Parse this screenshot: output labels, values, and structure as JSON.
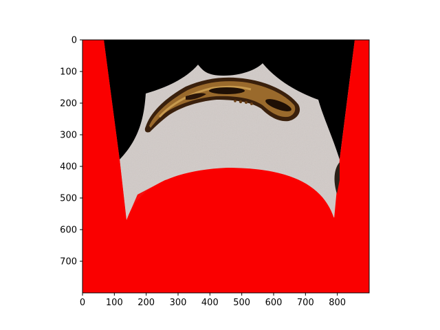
{
  "chart_data": {
    "type": "image",
    "title": "",
    "xlabel": "",
    "ylabel": "",
    "xlim": [
      0,
      900
    ],
    "ylim": [
      800,
      0
    ],
    "x_ticks": [
      "0",
      "100",
      "200",
      "300",
      "400",
      "500",
      "600",
      "700",
      "800"
    ],
    "y_ticks": [
      "0",
      "100",
      "200",
      "300",
      "400",
      "500",
      "600",
      "700"
    ],
    "x_tick_values": [
      0,
      100,
      200,
      300,
      400,
      500,
      600,
      700,
      800
    ],
    "y_tick_values": [
      0,
      100,
      200,
      300,
      400,
      500,
      600,
      700
    ],
    "grid": false,
    "image_content": {
      "background_fill": "red",
      "regions": [
        {
          "name": "top-black-region",
          "color": "#000000"
        },
        {
          "name": "gray-stone-region",
          "color": "#cfc8c6"
        },
        {
          "name": "bottom-red-dome",
          "color": "#fa0000"
        },
        {
          "name": "fossil-object",
          "color": "#8b5a1e"
        }
      ]
    }
  },
  "colors": {
    "red": "#fa0000",
    "black": "#000000",
    "gray": "#d2cbc8",
    "bone": "#9a6a2c",
    "bone_dark": "#3a200c"
  }
}
